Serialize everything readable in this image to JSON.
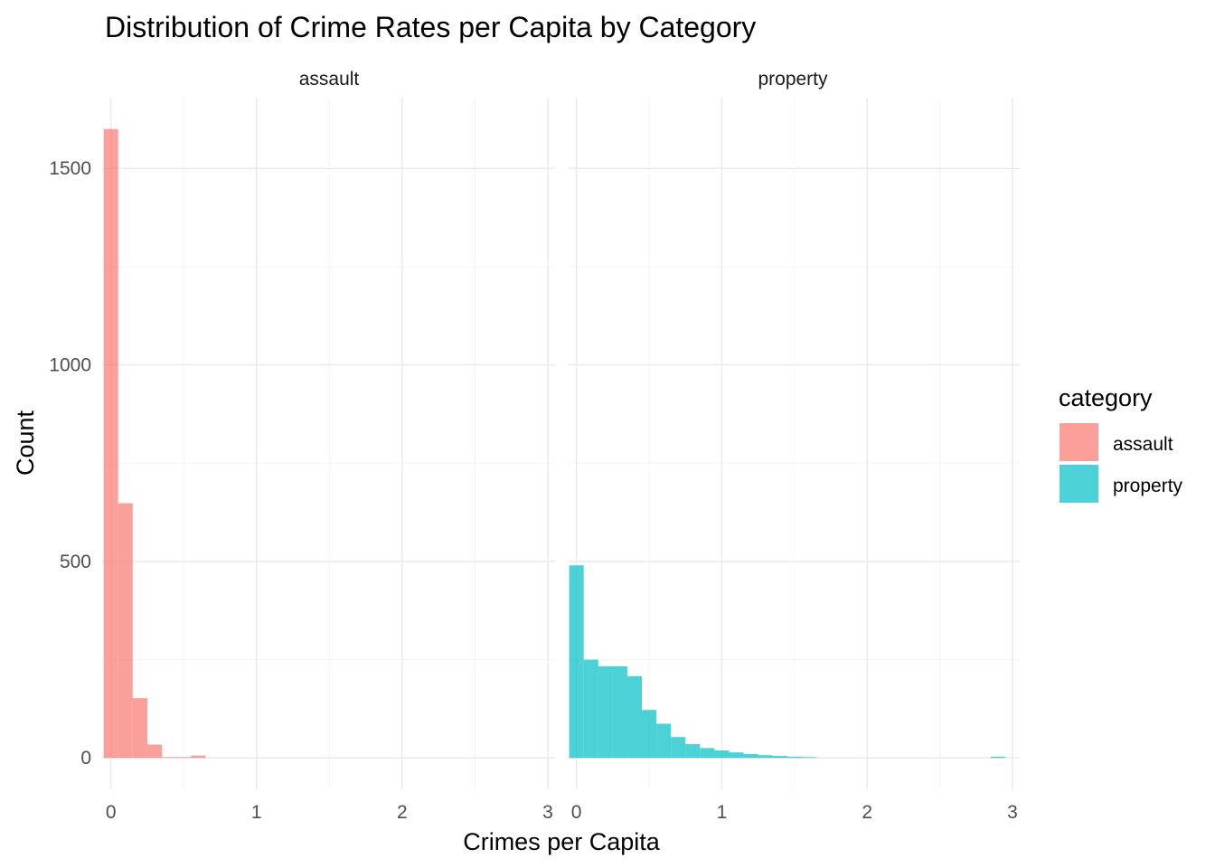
{
  "chart_data": {
    "type": "histogram",
    "title": "Distribution of Crime Rates per Capita by Category",
    "xlabel": "Crimes per Capita",
    "ylabel": "Count",
    "facets": [
      "assault",
      "property"
    ],
    "xlim": [
      -0.06,
      3.05
    ],
    "ylim": [
      -80,
      1680
    ],
    "x_ticks": [
      0,
      1,
      2,
      3
    ],
    "y_ticks": [
      0,
      500,
      1000,
      1500
    ],
    "bin_width": 0.1,
    "grid": true,
    "legend": {
      "title": "category",
      "placement": "right",
      "entries": [
        {
          "label": "assault",
          "color": "#F8766D"
        },
        {
          "label": "property",
          "color": "#00BFC4"
        }
      ]
    },
    "series": [
      {
        "name": "assault",
        "facet": "assault",
        "color": "#F8766D",
        "bin_starts": [
          -0.05,
          0.05,
          0.15,
          0.25,
          0.35,
          0.45,
          0.55
        ],
        "counts": [
          1600,
          648,
          152,
          34,
          2,
          2,
          6
        ]
      },
      {
        "name": "property",
        "facet": "property",
        "color": "#00BFC4",
        "bin_starts": [
          -0.05,
          0.05,
          0.15,
          0.25,
          0.35,
          0.45,
          0.55,
          0.65,
          0.75,
          0.85,
          0.95,
          1.05,
          1.15,
          1.25,
          1.35,
          1.45,
          1.55,
          2.85
        ],
        "counts": [
          490,
          250,
          233,
          233,
          208,
          122,
          87,
          53,
          35,
          25,
          19,
          14,
          10,
          7,
          5,
          3,
          2,
          3
        ]
      }
    ]
  }
}
